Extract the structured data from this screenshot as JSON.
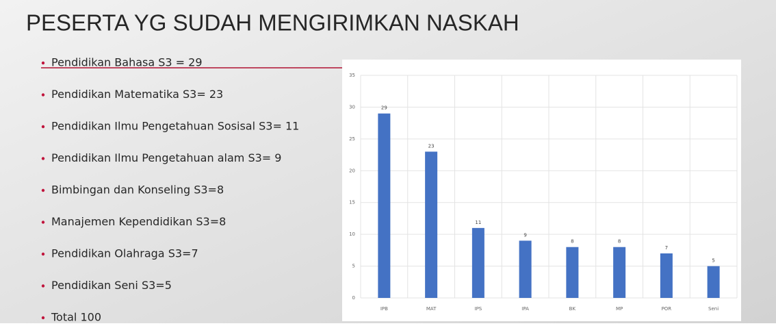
{
  "slide": {
    "title": "PESERTA YG SUDAH MENGIRIMKAN NASKAH",
    "bullets": [
      "Pendidikan Bahasa S3 = 29",
      "Pendidikan Matematika S3= 23",
      "Pendidikan Ilmu Pengetahuan Sosisal S3= 11",
      "Pendidikan Ilmu Pengetahuan alam S3= 9",
      "Bimbingan dan Konseling S3=8",
      "Manajemen Kependidikan S3=8",
      "Pendidikan Olahraga S3=7",
      "Pendidikan Seni S3=5",
      "Total   100"
    ]
  },
  "chart_data": {
    "type": "bar",
    "categories": [
      "IPB",
      "MAT",
      "IPS",
      "IPA",
      "BK",
      "MP",
      "POR",
      "Seni"
    ],
    "values": [
      29,
      23,
      11,
      9,
      8,
      8,
      7,
      5
    ],
    "color": "#4472c4",
    "ylim": [
      0,
      35
    ],
    "yticks": [
      0,
      5,
      10,
      15,
      20,
      25,
      30,
      35
    ],
    "grid": true
  }
}
